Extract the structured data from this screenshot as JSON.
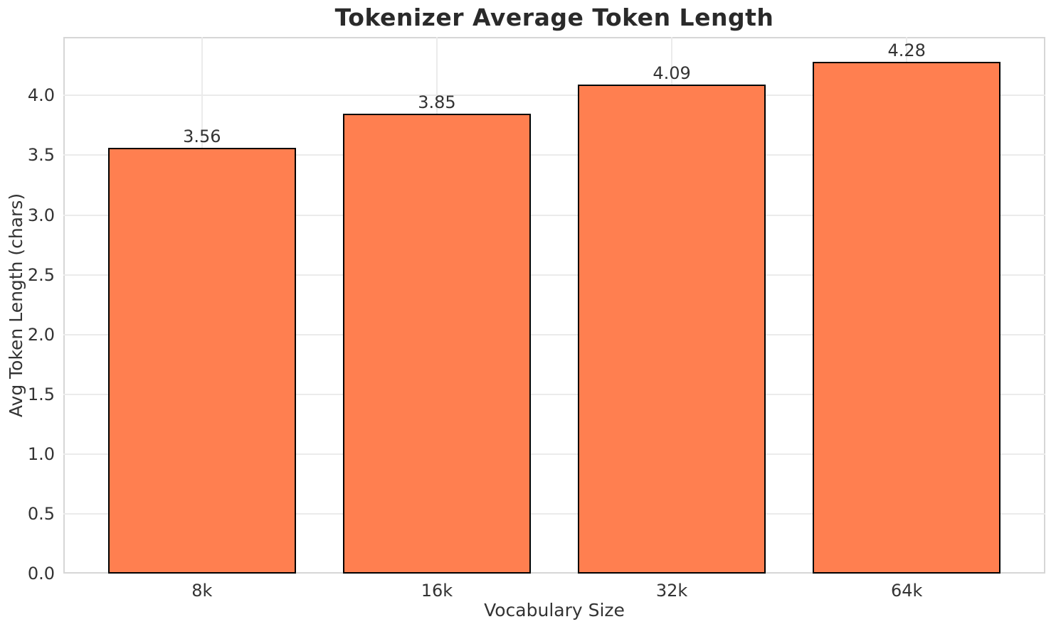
{
  "chart_data": {
    "type": "bar",
    "title": "Tokenizer Average Token Length",
    "xlabel": "Vocabulary Size",
    "ylabel": "Avg Token Length (chars)",
    "categories": [
      "8k",
      "16k",
      "32k",
      "64k"
    ],
    "values": [
      3.56,
      3.85,
      4.09,
      4.28
    ],
    "value_labels": [
      "3.56",
      "3.85",
      "4.09",
      "4.28"
    ],
    "ylim": [
      0,
      4.49
    ],
    "y_ticks": [
      0,
      0.5,
      1,
      1.5,
      2,
      2.5,
      3,
      3.5,
      4
    ],
    "y_tick_labels": [
      "0.0",
      "0.5",
      "1.0",
      "1.5",
      "2.0",
      "2.5",
      "3.0",
      "3.5",
      "4.0"
    ],
    "grid": true,
    "legend": "none",
    "bar_width_fraction": 0.8,
    "colors": {
      "bar_fill": "#FF7F50",
      "bar_edge": "#000000",
      "grid": "#ebebeb",
      "spine": "#d6d6d6",
      "text": "#333333",
      "title": "#2a2a2a",
      "background": "#ffffff"
    }
  }
}
